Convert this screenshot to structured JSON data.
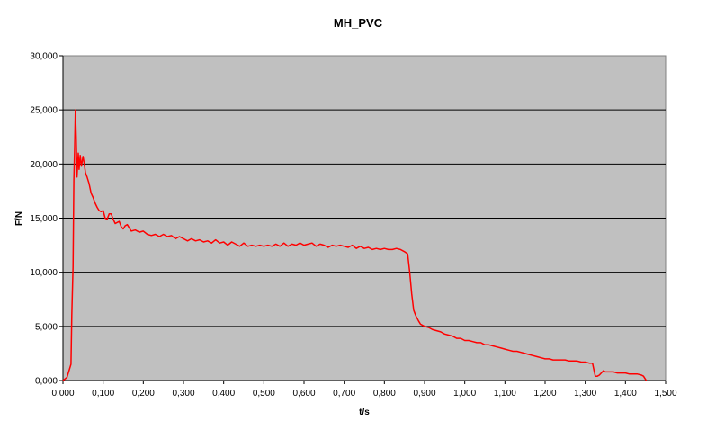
{
  "chart_data": {
    "type": "line",
    "title": "MH_PVC",
    "xlabel": "t/s",
    "ylabel": "F/N",
    "xlim": [
      0,
      1.5
    ],
    "ylim": [
      0,
      30000
    ],
    "x_ticks": [
      "0,000",
      "0,100",
      "0,200",
      "0,300",
      "0,400",
      "0,500",
      "0,600",
      "0,700",
      "0,800",
      "0,900",
      "1,000",
      "1,100",
      "1,200",
      "1,300",
      "1,400",
      "1,500"
    ],
    "y_ticks": [
      "0,000",
      "5,000",
      "10,000",
      "15,000",
      "20,000",
      "25,000",
      "30,000"
    ],
    "grid": "horizontal",
    "plot_background": "#c0c0c0",
    "line_color": "#ff0000",
    "series": [
      {
        "name": "",
        "points": [
          [
            0.0,
            0
          ],
          [
            0.01,
            300
          ],
          [
            0.02,
            1500
          ],
          [
            0.022,
            6000
          ],
          [
            0.025,
            10500
          ],
          [
            0.027,
            18500
          ],
          [
            0.029,
            21500
          ],
          [
            0.031,
            25000
          ],
          [
            0.033,
            22500
          ],
          [
            0.035,
            18800
          ],
          [
            0.038,
            21000
          ],
          [
            0.04,
            19500
          ],
          [
            0.043,
            20800
          ],
          [
            0.046,
            19800
          ],
          [
            0.05,
            20700
          ],
          [
            0.053,
            20000
          ],
          [
            0.056,
            19200
          ],
          [
            0.06,
            18800
          ],
          [
            0.065,
            18200
          ],
          [
            0.07,
            17300
          ],
          [
            0.075,
            16900
          ],
          [
            0.08,
            16400
          ],
          [
            0.085,
            16000
          ],
          [
            0.09,
            15700
          ],
          [
            0.095,
            15600
          ],
          [
            0.1,
            15700
          ],
          [
            0.105,
            15000
          ],
          [
            0.11,
            14900
          ],
          [
            0.115,
            15400
          ],
          [
            0.12,
            15400
          ],
          [
            0.125,
            14900
          ],
          [
            0.13,
            14500
          ],
          [
            0.135,
            14600
          ],
          [
            0.14,
            14700
          ],
          [
            0.145,
            14200
          ],
          [
            0.15,
            14000
          ],
          [
            0.155,
            14300
          ],
          [
            0.16,
            14400
          ],
          [
            0.17,
            13800
          ],
          [
            0.18,
            13900
          ],
          [
            0.19,
            13700
          ],
          [
            0.2,
            13800
          ],
          [
            0.21,
            13500
          ],
          [
            0.22,
            13400
          ],
          [
            0.23,
            13500
          ],
          [
            0.24,
            13300
          ],
          [
            0.25,
            13500
          ],
          [
            0.26,
            13300
          ],
          [
            0.27,
            13400
          ],
          [
            0.28,
            13100
          ],
          [
            0.29,
            13300
          ],
          [
            0.3,
            13100
          ],
          [
            0.31,
            12900
          ],
          [
            0.32,
            13100
          ],
          [
            0.33,
            12900
          ],
          [
            0.34,
            13000
          ],
          [
            0.35,
            12800
          ],
          [
            0.36,
            12900
          ],
          [
            0.37,
            12700
          ],
          [
            0.38,
            13000
          ],
          [
            0.39,
            12700
          ],
          [
            0.4,
            12800
          ],
          [
            0.41,
            12500
          ],
          [
            0.42,
            12800
          ],
          [
            0.43,
            12600
          ],
          [
            0.44,
            12400
          ],
          [
            0.45,
            12700
          ],
          [
            0.46,
            12400
          ],
          [
            0.47,
            12500
          ],
          [
            0.48,
            12400
          ],
          [
            0.49,
            12500
          ],
          [
            0.5,
            12400
          ],
          [
            0.51,
            12500
          ],
          [
            0.52,
            12400
          ],
          [
            0.53,
            12600
          ],
          [
            0.54,
            12400
          ],
          [
            0.55,
            12700
          ],
          [
            0.56,
            12400
          ],
          [
            0.57,
            12600
          ],
          [
            0.58,
            12500
          ],
          [
            0.59,
            12700
          ],
          [
            0.6,
            12500
          ],
          [
            0.61,
            12600
          ],
          [
            0.62,
            12700
          ],
          [
            0.63,
            12400
          ],
          [
            0.64,
            12600
          ],
          [
            0.65,
            12500
          ],
          [
            0.66,
            12300
          ],
          [
            0.67,
            12500
          ],
          [
            0.68,
            12400
          ],
          [
            0.69,
            12500
          ],
          [
            0.7,
            12400
          ],
          [
            0.71,
            12300
          ],
          [
            0.72,
            12500
          ],
          [
            0.73,
            12200
          ],
          [
            0.74,
            12400
          ],
          [
            0.75,
            12200
          ],
          [
            0.76,
            12300
          ],
          [
            0.77,
            12100
          ],
          [
            0.78,
            12200
          ],
          [
            0.79,
            12100
          ],
          [
            0.8,
            12200
          ],
          [
            0.81,
            12100
          ],
          [
            0.82,
            12100
          ],
          [
            0.83,
            12200
          ],
          [
            0.84,
            12100
          ],
          [
            0.85,
            11900
          ],
          [
            0.858,
            11700
          ],
          [
            0.863,
            10000
          ],
          [
            0.868,
            8000
          ],
          [
            0.873,
            6500
          ],
          [
            0.878,
            6000
          ],
          [
            0.885,
            5500
          ],
          [
            0.89,
            5200
          ],
          [
            0.9,
            5000
          ],
          [
            0.91,
            4900
          ],
          [
            0.92,
            4700
          ],
          [
            0.93,
            4600
          ],
          [
            0.94,
            4500
          ],
          [
            0.95,
            4300
          ],
          [
            0.96,
            4200
          ],
          [
            0.97,
            4100
          ],
          [
            0.98,
            3900
          ],
          [
            0.99,
            3900
          ],
          [
            1.0,
            3700
          ],
          [
            1.01,
            3700
          ],
          [
            1.02,
            3600
          ],
          [
            1.03,
            3500
          ],
          [
            1.04,
            3500
          ],
          [
            1.05,
            3300
          ],
          [
            1.06,
            3300
          ],
          [
            1.07,
            3200
          ],
          [
            1.08,
            3100
          ],
          [
            1.09,
            3000
          ],
          [
            1.1,
            2900
          ],
          [
            1.11,
            2800
          ],
          [
            1.12,
            2700
          ],
          [
            1.13,
            2700
          ],
          [
            1.14,
            2600
          ],
          [
            1.15,
            2500
          ],
          [
            1.16,
            2400
          ],
          [
            1.17,
            2300
          ],
          [
            1.18,
            2200
          ],
          [
            1.19,
            2100
          ],
          [
            1.2,
            2000
          ],
          [
            1.21,
            2000
          ],
          [
            1.22,
            1900
          ],
          [
            1.23,
            1900
          ],
          [
            1.24,
            1900
          ],
          [
            1.25,
            1900
          ],
          [
            1.26,
            1800
          ],
          [
            1.27,
            1800
          ],
          [
            1.28,
            1800
          ],
          [
            1.29,
            1700
          ],
          [
            1.3,
            1700
          ],
          [
            1.31,
            1600
          ],
          [
            1.318,
            1600
          ],
          [
            1.322,
            900
          ],
          [
            1.325,
            400
          ],
          [
            1.33,
            400
          ],
          [
            1.335,
            500
          ],
          [
            1.34,
            700
          ],
          [
            1.345,
            900
          ],
          [
            1.35,
            800
          ],
          [
            1.36,
            800
          ],
          [
            1.37,
            800
          ],
          [
            1.38,
            700
          ],
          [
            1.39,
            700
          ],
          [
            1.4,
            700
          ],
          [
            1.41,
            600
          ],
          [
            1.42,
            600
          ],
          [
            1.43,
            600
          ],
          [
            1.44,
            500
          ],
          [
            1.445,
            400
          ],
          [
            1.45,
            100
          ],
          [
            1.452,
            0
          ]
        ]
      }
    ]
  }
}
